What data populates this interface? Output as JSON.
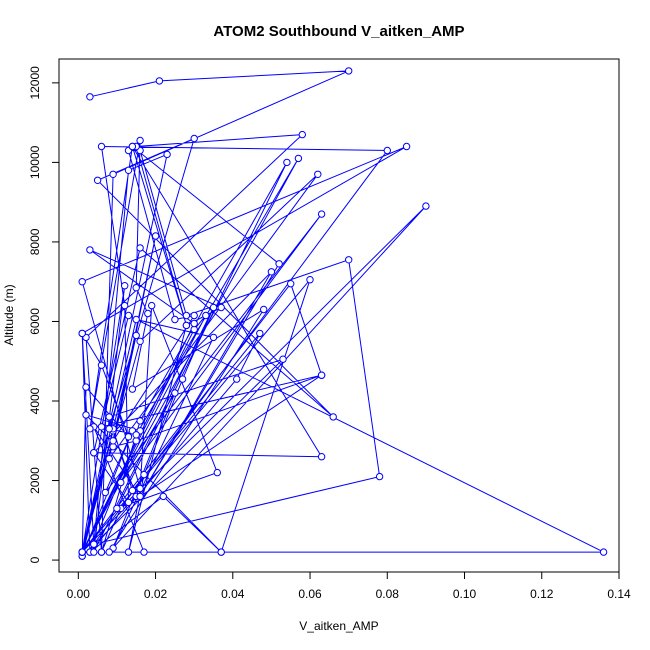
{
  "chart_data": {
    "type": "line",
    "title": "ATOM2 Southbound V_aitken_AMP",
    "xlabel": "V_aitken_AMP",
    "ylabel": "Altitude (m)",
    "xlim": [
      -0.005,
      0.14
    ],
    "ylim": [
      -300,
      12600
    ],
    "xticks": [
      0.0,
      0.02,
      0.04,
      0.06,
      0.08,
      0.1,
      0.12,
      0.14
    ],
    "xtick_labels": [
      "0.00",
      "0.02",
      "0.04",
      "0.06",
      "0.08",
      "0.10",
      "0.12",
      "0.14"
    ],
    "yticks": [
      0,
      2000,
      4000,
      6000,
      8000,
      10000,
      12000
    ],
    "ytick_labels": [
      "0",
      "2000",
      "4000",
      "6000",
      "8000",
      "10000",
      "12000"
    ],
    "grid": false,
    "marker": "open-circle",
    "colors": {
      "series": "#0000ff",
      "axis": "#000000",
      "background": "#ffffff"
    },
    "series": [
      {
        "x": [
          0.037,
          0.022,
          0.003,
          0.001,
          0.006,
          0.013,
          0.002,
          0.001,
          0.009,
          0.015,
          0.001,
          0.055,
          0.063,
          0.016,
          0.004,
          0.017,
          0.001,
          0.06,
          0.037,
          0.002,
          0.016,
          0.003,
          0.041,
          0.047,
          0.014,
          0.008,
          0.053,
          0.001,
          0.014,
          0.007,
          0.063,
          0.011,
          0.025,
          0.009,
          0.035,
          0.015,
          0.001,
          0.033,
          0.03,
          0.001,
          0.012,
          0.004,
          0.035,
          0.027,
          0.017,
          0.013,
          0.028,
          0.037,
          0.003,
          0.03,
          0.001,
          0.016,
          0.062,
          0.008,
          0.02,
          0.009,
          0.015,
          0.063,
          0.006,
          0.013,
          0.136,
          0.001,
          0.009,
          0.015,
          0.009,
          0.03,
          0.025,
          0.013,
          0.016,
          0.028,
          0.07,
          0.078,
          0.004,
          0.013,
          0.023,
          0.001,
          0.057,
          0.015,
          0.008,
          0.03,
          0.005,
          0.066,
          0.016,
          0.004,
          0.05,
          0.016,
          0.052,
          0.014,
          0.028,
          0.015,
          0.058,
          0.002,
          0.006,
          0.011,
          0.09,
          0.008,
          0.048,
          0.014,
          0.018,
          0.015,
          0.016,
          0.003,
          0.014,
          0.063,
          0.004,
          0.013,
          0.012,
          0.006,
          0.08,
          0.004,
          0.001,
          0.085,
          0.001,
          0.016,
          0.019,
          0.036,
          0.01,
          0.054,
          0.016,
          0.006,
          0.009,
          0.07,
          0.021,
          0.003
        ],
        "y": [
          200,
          1600,
          200,
          5700,
          4900,
          3100,
          4350,
          100,
          3250,
          1600,
          200,
          6950,
          4650,
          1600,
          3350,
          200,
          200,
          7050,
          200,
          3650,
          3250,
          200,
          4550,
          5700,
          1750,
          3600,
          5050,
          100,
          3250,
          1700,
          8700,
          1950,
          4200,
          300,
          5600,
          6050,
          200,
          6150,
          5800,
          200,
          6900,
          200,
          6350,
          4550,
          2150,
          200,
          5900,
          6350,
          7800,
          5950,
          200,
          5500,
          9700,
          2550,
          8150,
          2850,
          3000,
          4650,
          3350,
          6150,
          200,
          200,
          3300,
          5650,
          3000,
          6150,
          6050,
          10300,
          10300,
          6150,
          7550,
          2100,
          400,
          9800,
          10200,
          200,
          10100,
          3150,
          3300,
          10600,
          9550,
          3600,
          7850,
          2700,
          7250,
          1600,
          7450,
          10400,
          5900,
          10400,
          10700,
          5600,
          200,
          1300,
          8900,
          200,
          6300,
          4300,
          6200,
          6850,
          10550,
          3300,
          10400,
          2600,
          2700,
          1450,
          6400,
          10400,
          10300,
          400,
          5700,
          10400,
          7000,
          1800,
          6400,
          2200,
          1300,
          10000,
          3500,
          200,
          9700,
          12300,
          12050,
          11650
        ]
      }
    ]
  }
}
